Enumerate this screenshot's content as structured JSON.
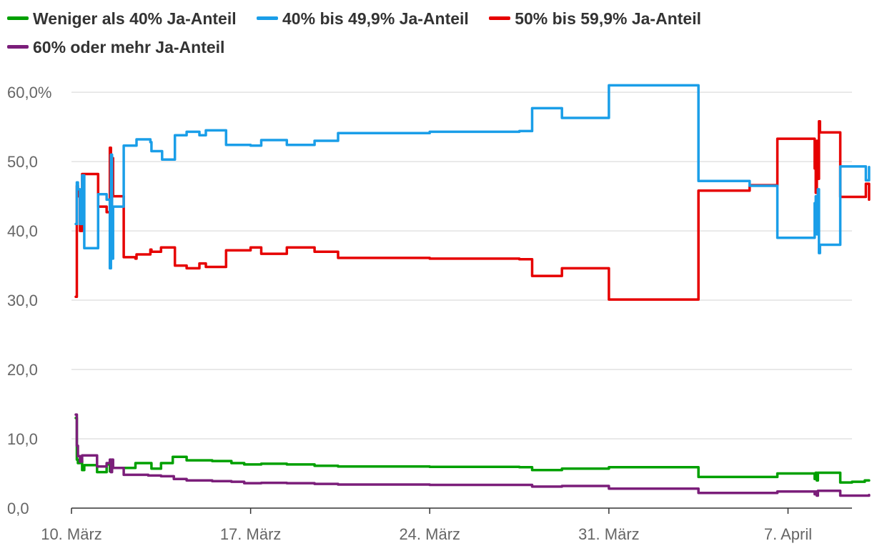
{
  "chart_data": {
    "type": "line",
    "title": "",
    "xlabel": "",
    "ylabel": "",
    "ylim": [
      0,
      63
    ],
    "xlim": [
      "2021-03-10",
      "2021-04-09T12:00"
    ],
    "grid": true,
    "legend_position": "top",
    "y_ticks": [
      {
        "value": 0,
        "label": "0,0"
      },
      {
        "value": 10,
        "label": "10,0"
      },
      {
        "value": 20,
        "label": "20,0"
      },
      {
        "value": 30,
        "label": "30,0"
      },
      {
        "value": 40,
        "label": "40,0"
      },
      {
        "value": 50,
        "label": "50,0"
      },
      {
        "value": 60,
        "label": "60,0%"
      }
    ],
    "x_ticks": [
      {
        "value": "2021-03-10",
        "label": "10. März"
      },
      {
        "value": "2021-03-17",
        "label": "17. März"
      },
      {
        "value": "2021-03-24",
        "label": "24. März"
      },
      {
        "value": "2021-03-31",
        "label": "31. März"
      },
      {
        "value": "2021-04-07",
        "label": "7. April"
      }
    ],
    "series": [
      {
        "name": "Weniger als 40% Ja-Anteil",
        "color": "#00a000",
        "points": [
          [
            "2021-03-10T04:00",
            13.0
          ],
          [
            "2021-03-10T05:00",
            7.0
          ],
          [
            "2021-03-10T06:00",
            6.5
          ],
          [
            "2021-03-10T08:00",
            6.8
          ],
          [
            "2021-03-10T10:00",
            5.5
          ],
          [
            "2021-03-10T12:00",
            6.2
          ],
          [
            "2021-03-11T00:00",
            5.2
          ],
          [
            "2021-03-11T08:00",
            5.2
          ],
          [
            "2021-03-11T09:00",
            6.3
          ],
          [
            "2021-03-11T12:00",
            5.3
          ],
          [
            "2021-03-11T14:00",
            5.8
          ],
          [
            "2021-03-12T00:00",
            5.8
          ],
          [
            "2021-03-12T12:00",
            6.5
          ],
          [
            "2021-03-13T02:00",
            6.5
          ],
          [
            "2021-03-13T03:00",
            5.7
          ],
          [
            "2021-03-13T12:00",
            6.5
          ],
          [
            "2021-03-13T22:00",
            6.5
          ],
          [
            "2021-03-13T23:00",
            7.4
          ],
          [
            "2021-03-14T12:00",
            6.9
          ],
          [
            "2021-03-15T12:00",
            6.8
          ],
          [
            "2021-03-16T06:00",
            6.5
          ],
          [
            "2021-03-16T18:00",
            6.3
          ],
          [
            "2021-03-17T10:00",
            6.4
          ],
          [
            "2021-03-18T10:00",
            6.3
          ],
          [
            "2021-03-19T12:00",
            6.1
          ],
          [
            "2021-03-20T10:00",
            6.0
          ],
          [
            "2021-03-24T00:00",
            5.95
          ],
          [
            "2021-03-27T12:00",
            5.9
          ],
          [
            "2021-03-28T00:00",
            5.5
          ],
          [
            "2021-03-29T04:00",
            5.7
          ],
          [
            "2021-03-30T12:00",
            5.7
          ],
          [
            "2021-03-31T00:00",
            5.9
          ],
          [
            "2021-04-02T00:00",
            5.9
          ],
          [
            "2021-04-03T10:00",
            5.9
          ],
          [
            "2021-04-03T12:00",
            4.5
          ],
          [
            "2021-04-05T00:00",
            4.5
          ],
          [
            "2021-04-06T12:00",
            4.5
          ],
          [
            "2021-04-06T14:00",
            5.0
          ],
          [
            "2021-04-08T00:00",
            5.0
          ],
          [
            "2021-04-08T01:00",
            4.2
          ],
          [
            "2021-04-08T02:00",
            5.1
          ],
          [
            "2021-04-08T03:00",
            4.0
          ],
          [
            "2021-04-08T04:00",
            5.1
          ],
          [
            "2021-04-09T00:00",
            5.1
          ],
          [
            "2021-04-09T01:00",
            3.7
          ],
          [
            "2021-04-09T12:00",
            3.8
          ],
          [
            "2021-04-10T00:00",
            4.0
          ],
          [
            "2021-04-10T04:00",
            4.0
          ]
        ]
      },
      {
        "name": "40% bis 49,9% Ja-Anteil",
        "color": "#1a9ee8",
        "points": [
          [
            "2021-03-10T04:00",
            41.0
          ],
          [
            "2021-03-10T05:00",
            47.0
          ],
          [
            "2021-03-10T06:00",
            46.0
          ],
          [
            "2021-03-10T08:00",
            41.0
          ],
          [
            "2021-03-10T10:00",
            48.0
          ],
          [
            "2021-03-10T12:00",
            37.5
          ],
          [
            "2021-03-11T00:00",
            37.5
          ],
          [
            "2021-03-11T01:00",
            45.3
          ],
          [
            "2021-03-11T08:00",
            45.3
          ],
          [
            "2021-03-11T09:00",
            44.5
          ],
          [
            "2021-03-11T12:00",
            34.6
          ],
          [
            "2021-03-11T13:00",
            51.0
          ],
          [
            "2021-03-11T14:00",
            36.0
          ],
          [
            "2021-03-11T15:00",
            43.5
          ],
          [
            "2021-03-12T00:00",
            43.5
          ],
          [
            "2021-03-12T01:00",
            52.3
          ],
          [
            "2021-03-12T12:00",
            52.3
          ],
          [
            "2021-03-12T13:00",
            53.2
          ],
          [
            "2021-03-13T02:00",
            52.8
          ],
          [
            "2021-03-13T03:00",
            51.5
          ],
          [
            "2021-03-13T12:00",
            51.5
          ],
          [
            "2021-03-13T13:00",
            50.3
          ],
          [
            "2021-03-14T00:00",
            50.3
          ],
          [
            "2021-03-14T01:00",
            53.8
          ],
          [
            "2021-03-14T12:00",
            54.3
          ],
          [
            "2021-03-15T00:00",
            53.8
          ],
          [
            "2021-03-15T06:00",
            54.5
          ],
          [
            "2021-03-16T00:00",
            54.5
          ],
          [
            "2021-03-16T01:00",
            52.4
          ],
          [
            "2021-03-17T00:00",
            52.3
          ],
          [
            "2021-03-17T10:00",
            53.1
          ],
          [
            "2021-03-18T10:00",
            52.4
          ],
          [
            "2021-03-19T12:00",
            53.0
          ],
          [
            "2021-03-20T10:00",
            54.1
          ],
          [
            "2021-03-24T00:00",
            54.3
          ],
          [
            "2021-03-27T12:00",
            54.4
          ],
          [
            "2021-03-28T00:00",
            57.7
          ],
          [
            "2021-03-29T04:00",
            56.3
          ],
          [
            "2021-03-30T12:00",
            56.3
          ],
          [
            "2021-03-31T00:00",
            61.0
          ],
          [
            "2021-04-03T10:00",
            61.0
          ],
          [
            "2021-04-03T12:00",
            47.2
          ],
          [
            "2021-04-05T00:00",
            47.2
          ],
          [
            "2021-04-05T12:00",
            46.5
          ],
          [
            "2021-04-06T12:00",
            46.5
          ],
          [
            "2021-04-06T14:00",
            39.0
          ],
          [
            "2021-04-08T00:00",
            39.0
          ],
          [
            "2021-04-08T01:00",
            44.0
          ],
          [
            "2021-04-08T02:00",
            45.0
          ],
          [
            "2021-04-08T03:00",
            39.5
          ],
          [
            "2021-04-08T04:00",
            46.0
          ],
          [
            "2021-04-08T05:00",
            36.8
          ],
          [
            "2021-04-08T06:00",
            38.0
          ],
          [
            "2021-04-09T00:00",
            38.0
          ],
          [
            "2021-04-09T01:00",
            49.3
          ],
          [
            "2021-04-10T00:00",
            49.3
          ],
          [
            "2021-04-10T01:00",
            47.3
          ],
          [
            "2021-04-10T04:00",
            49.2
          ]
        ]
      },
      {
        "name": "50% bis 59,9% Ja-Anteil",
        "color": "#e60000",
        "points": [
          [
            "2021-03-10T04:00",
            30.5
          ],
          [
            "2021-03-10T05:00",
            46.5
          ],
          [
            "2021-03-10T06:00",
            45.0
          ],
          [
            "2021-03-10T08:00",
            40.0
          ],
          [
            "2021-03-10T10:00",
            48.2
          ],
          [
            "2021-03-10T12:00",
            48.2
          ],
          [
            "2021-03-11T00:00",
            48.2
          ],
          [
            "2021-03-11T01:00",
            43.5
          ],
          [
            "2021-03-11T08:00",
            43.5
          ],
          [
            "2021-03-11T09:00",
            42.7
          ],
          [
            "2021-03-11T12:00",
            52.0
          ],
          [
            "2021-03-11T13:00",
            42.5
          ],
          [
            "2021-03-11T14:00",
            50.5
          ],
          [
            "2021-03-11T15:00",
            45.0
          ],
          [
            "2021-03-12T00:00",
            45.0
          ],
          [
            "2021-03-12T01:00",
            36.2
          ],
          [
            "2021-03-12T12:00",
            36.0
          ],
          [
            "2021-03-12T13:00",
            36.6
          ],
          [
            "2021-03-13T02:00",
            37.3
          ],
          [
            "2021-03-13T03:00",
            37.0
          ],
          [
            "2021-03-13T12:00",
            37.6
          ],
          [
            "2021-03-14T00:00",
            37.6
          ],
          [
            "2021-03-14T01:00",
            35.0
          ],
          [
            "2021-03-14T12:00",
            34.6
          ],
          [
            "2021-03-15T00:00",
            35.3
          ],
          [
            "2021-03-15T06:00",
            34.8
          ],
          [
            "2021-03-16T00:00",
            34.8
          ],
          [
            "2021-03-16T01:00",
            37.2
          ],
          [
            "2021-03-17T00:00",
            37.6
          ],
          [
            "2021-03-17T10:00",
            36.7
          ],
          [
            "2021-03-18T10:00",
            37.6
          ],
          [
            "2021-03-19T12:00",
            37.0
          ],
          [
            "2021-03-20T10:00",
            36.1
          ],
          [
            "2021-03-24T00:00",
            36.0
          ],
          [
            "2021-03-27T12:00",
            35.9
          ],
          [
            "2021-03-28T00:00",
            33.5
          ],
          [
            "2021-03-29T04:00",
            34.6
          ],
          [
            "2021-03-30T12:00",
            34.6
          ],
          [
            "2021-03-31T00:00",
            30.1
          ],
          [
            "2021-04-03T10:00",
            30.1
          ],
          [
            "2021-04-03T12:00",
            45.8
          ],
          [
            "2021-04-05T00:00",
            45.8
          ],
          [
            "2021-04-05T12:00",
            46.6
          ],
          [
            "2021-04-06T12:00",
            46.6
          ],
          [
            "2021-04-06T14:00",
            53.3
          ],
          [
            "2021-04-08T00:00",
            53.3
          ],
          [
            "2021-04-08T01:00",
            49.0
          ],
          [
            "2021-04-08T02:00",
            45.5
          ],
          [
            "2021-04-08T03:00",
            53.0
          ],
          [
            "2021-04-08T04:00",
            47.5
          ],
          [
            "2021-04-08T05:00",
            55.8
          ],
          [
            "2021-04-08T06:00",
            54.2
          ],
          [
            "2021-04-09T00:00",
            54.2
          ],
          [
            "2021-04-09T01:00",
            44.9
          ],
          [
            "2021-04-10T00:00",
            44.9
          ],
          [
            "2021-04-10T01:00",
            46.8
          ],
          [
            "2021-04-10T04:00",
            44.5
          ]
        ]
      },
      {
        "name": "60% oder mehr Ja-Anteil",
        "color": "#7b1e7a",
        "points": [
          [
            "2021-03-10T04:00",
            13.5
          ],
          [
            "2021-03-10T05:00",
            9.0
          ],
          [
            "2021-03-10T06:00",
            7.5
          ],
          [
            "2021-03-10T08:00",
            6.7
          ],
          [
            "2021-03-10T10:00",
            7.6
          ],
          [
            "2021-03-10T12:00",
            7.6
          ],
          [
            "2021-03-11T00:00",
            6.0
          ],
          [
            "2021-03-11T08:00",
            6.0
          ],
          [
            "2021-03-11T09:00",
            6.5
          ],
          [
            "2021-03-11T12:00",
            7.0
          ],
          [
            "2021-03-11T13:00",
            5.2
          ],
          [
            "2021-03-11T14:00",
            7.0
          ],
          [
            "2021-03-11T15:00",
            5.8
          ],
          [
            "2021-03-12T00:00",
            5.8
          ],
          [
            "2021-03-12T01:00",
            4.8
          ],
          [
            "2021-03-12T12:00",
            4.8
          ],
          [
            "2021-03-13T00:00",
            4.7
          ],
          [
            "2021-03-13T12:00",
            4.6
          ],
          [
            "2021-03-14T00:00",
            4.2
          ],
          [
            "2021-03-14T12:00",
            4.0
          ],
          [
            "2021-03-15T12:00",
            3.9
          ],
          [
            "2021-03-16T06:00",
            3.8
          ],
          [
            "2021-03-16T18:00",
            3.6
          ],
          [
            "2021-03-17T10:00",
            3.65
          ],
          [
            "2021-03-18T10:00",
            3.6
          ],
          [
            "2021-03-19T12:00",
            3.5
          ],
          [
            "2021-03-20T10:00",
            3.4
          ],
          [
            "2021-03-24T00:00",
            3.35
          ],
          [
            "2021-03-27T12:00",
            3.35
          ],
          [
            "2021-03-28T00:00",
            3.1
          ],
          [
            "2021-03-29T04:00",
            3.2
          ],
          [
            "2021-03-30T12:00",
            3.2
          ],
          [
            "2021-03-31T00:00",
            2.8
          ],
          [
            "2021-04-03T10:00",
            2.8
          ],
          [
            "2021-04-03T12:00",
            2.2
          ],
          [
            "2021-04-05T00:00",
            2.2
          ],
          [
            "2021-04-06T12:00",
            2.2
          ],
          [
            "2021-04-06T14:00",
            2.4
          ],
          [
            "2021-04-08T00:00",
            2.4
          ],
          [
            "2021-04-08T01:00",
            2.0
          ],
          [
            "2021-04-08T02:00",
            2.4
          ],
          [
            "2021-04-08T03:00",
            1.8
          ],
          [
            "2021-04-08T04:00",
            2.5
          ],
          [
            "2021-04-09T00:00",
            2.5
          ],
          [
            "2021-04-09T01:00",
            1.8
          ],
          [
            "2021-04-10T00:00",
            1.8
          ],
          [
            "2021-04-10T04:00",
            1.9
          ]
        ]
      }
    ]
  }
}
